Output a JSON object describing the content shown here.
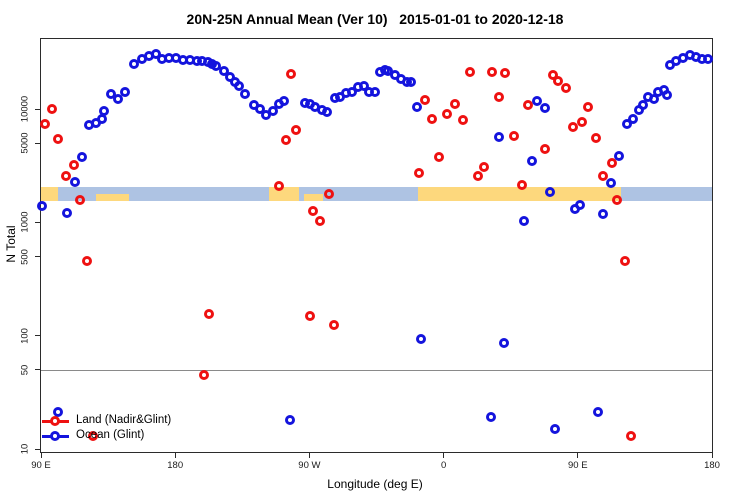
{
  "title": "20N-25N Annual Mean (Ver 10)   2015-01-01 to 2020-12-18",
  "axes": {
    "y_label": "N Total",
    "x_label": "Longitude (deg E)",
    "y_scale": "log10",
    "y_ticks": [
      10,
      50,
      100,
      500,
      1000,
      5000,
      10000
    ],
    "x_ticks": [
      {
        "lon": 90,
        "label": "90 E"
      },
      {
        "lon": 180,
        "label": "180"
      },
      {
        "lon": 270,
        "label": "90 W"
      },
      {
        "lon": 360,
        "label": "0"
      },
      {
        "lon": 450,
        "label": "90 E"
      },
      {
        "lon": 540,
        "label": "180"
      }
    ]
  },
  "legend": {
    "items": [
      {
        "label": "Land (Nadir&Glint)",
        "color": "#ee1111"
      },
      {
        "label": "Ocean (Glint)",
        "color": "#1414dd"
      }
    ]
  },
  "reference_line": {
    "value": 50,
    "color": "#8a8a8a"
  },
  "band": {
    "value_range": [
      1560,
      2060
    ],
    "sand_color": "#fdd87d",
    "blue_color": "#aec3e3",
    "sand_segments_lon": [
      [
        90,
        101.4
      ],
      [
        242.9,
        263.0
      ],
      [
        342.8,
        479.0
      ]
    ],
    "blue_segments_lon": [
      [
        101.4,
        242.9
      ],
      [
        263.0,
        342.8
      ],
      [
        479.0,
        540
      ]
    ],
    "sand_half_segments_lon": [
      [
        126.9,
        149.0
      ],
      [
        266.4,
        279.2
      ]
    ]
  },
  "chart_data": {
    "type": "scatter",
    "title": "20N-25N Annual Mean (Ver 10)   2015-01-01 to 2020-12-18",
    "xlabel": "Longitude (deg E)",
    "ylabel": "N Total",
    "x_note": "extended longitude axis, degrees east from 90E wrapping to 180 (90..540)",
    "xlim": [
      90,
      540
    ],
    "ylim_log": [
      10,
      41000
    ],
    "grid": false,
    "legend_position": "bottom-left",
    "series": [
      {
        "name": "Land (Nadir&Glint)",
        "color": "#ee1111",
        "points": [
          [
            92.9,
            7400
          ],
          [
            97.6,
            10000
          ],
          [
            101.6,
            5500
          ],
          [
            107,
            2560
          ],
          [
            112.4,
            3200
          ],
          [
            116.4,
            1570
          ],
          [
            121.1,
            460
          ],
          [
            125.1,
            13
          ],
          [
            199,
            45
          ],
          [
            203,
            156
          ],
          [
            249.4,
            2090
          ],
          [
            254,
            5330
          ],
          [
            257.4,
            20400
          ],
          [
            260.8,
            6540
          ],
          [
            270.2,
            150
          ],
          [
            272.2,
            1260
          ],
          [
            276.9,
            1030
          ],
          [
            283,
            1780
          ],
          [
            286.3,
            124
          ],
          [
            343.4,
            2720
          ],
          [
            347.4,
            12100
          ],
          [
            352.1,
            8250
          ],
          [
            356.8,
            3780
          ],
          [
            362.2,
            9120
          ],
          [
            367.5,
            11200
          ],
          [
            372.9,
            8070
          ],
          [
            377.6,
            21100
          ],
          [
            383,
            2560
          ],
          [
            387,
            3080
          ],
          [
            392.4,
            21100
          ],
          [
            397.1,
            12900
          ],
          [
            401.1,
            20700
          ],
          [
            407.2,
            5790
          ],
          [
            412.6,
            2130
          ],
          [
            416.6,
            10800
          ],
          [
            428,
            4450
          ],
          [
            433.4,
            19800
          ],
          [
            436.7,
            17600
          ],
          [
            442.1,
            15200
          ],
          [
            446.8,
            6930
          ],
          [
            452.8,
            7700
          ],
          [
            456.9,
            10400
          ],
          [
            462.3,
            5550
          ],
          [
            467,
            2560
          ],
          [
            473,
            3330
          ],
          [
            476.4,
            1570
          ],
          [
            481.7,
            460
          ],
          [
            485.7,
            13
          ]
        ]
      },
      {
        "name": "Ocean (Glint)",
        "color": "#1414dd",
        "points": [
          [
            90.9,
            1400
          ],
          [
            101.6,
            21
          ],
          [
            107.7,
            1210
          ],
          [
            113,
            2280
          ],
          [
            117.7,
            3780
          ],
          [
            122.4,
            7240
          ],
          [
            127.1,
            7530
          ],
          [
            131.2,
            8140
          ],
          [
            132.5,
            9550
          ],
          [
            137.2,
            13600
          ],
          [
            141.9,
            12300
          ],
          [
            146.6,
            14100
          ],
          [
            152.7,
            24900
          ],
          [
            158,
            27700
          ],
          [
            162.7,
            29400
          ],
          [
            167.4,
            30600
          ],
          [
            171.4,
            27700
          ],
          [
            176.1,
            28300
          ],
          [
            180.8,
            28300
          ],
          [
            184.9,
            27200
          ],
          [
            189.6,
            27200
          ],
          [
            194.3,
            26600
          ],
          [
            198.3,
            26600
          ],
          [
            201.7,
            26100
          ],
          [
            204.4,
            24900
          ],
          [
            207.1,
            23900
          ],
          [
            212.4,
            21500
          ],
          [
            216.5,
            19100
          ],
          [
            219.8,
            17300
          ],
          [
            222.5,
            15900
          ],
          [
            226.5,
            13600
          ],
          [
            232.6,
            10800
          ],
          [
            236.6,
            10000
          ],
          [
            240.6,
            8880
          ],
          [
            245.3,
            9550
          ],
          [
            249.4,
            11200
          ],
          [
            252.7,
            11900
          ],
          [
            256.7,
            18
          ],
          [
            266.8,
            11400
          ],
          [
            270.2,
            11000
          ],
          [
            273.5,
            10400
          ],
          [
            278.2,
            9770
          ],
          [
            281.6,
            9380
          ],
          [
            287,
            12600
          ],
          [
            290.3,
            12900
          ],
          [
            294.4,
            13800
          ],
          [
            298.4,
            14100
          ],
          [
            302.4,
            15600
          ],
          [
            306.4,
            15900
          ],
          [
            309.8,
            14100
          ],
          [
            313.8,
            14100
          ],
          [
            317.2,
            21100
          ],
          [
            320.5,
            22000
          ],
          [
            322.5,
            21500
          ],
          [
            327.3,
            20100
          ],
          [
            331.3,
            18400
          ],
          [
            335.3,
            17200
          ],
          [
            338,
            17200
          ],
          [
            342,
            10400
          ],
          [
            344.7,
            94
          ],
          [
            391.7,
            19
          ],
          [
            397.1,
            5680
          ],
          [
            400.4,
            86
          ],
          [
            413.9,
            1030
          ],
          [
            419.3,
            3480
          ],
          [
            422.6,
            11900
          ],
          [
            428,
            10200
          ],
          [
            431.4,
            1850
          ],
          [
            434.7,
            15
          ],
          [
            448.2,
            1310
          ],
          [
            451.5,
            1420
          ],
          [
            463.6,
            21
          ],
          [
            467,
            1180
          ],
          [
            472.3,
            2220
          ],
          [
            477.7,
            3850
          ],
          [
            483,
            7380
          ],
          [
            487.1,
            8140
          ],
          [
            491.1,
            9770
          ],
          [
            493.8,
            10800
          ],
          [
            497.2,
            12900
          ],
          [
            501.2,
            12300
          ],
          [
            503.9,
            14100
          ],
          [
            507.9,
            14700
          ],
          [
            509.9,
            13300
          ],
          [
            512,
            24400
          ],
          [
            516,
            26600
          ],
          [
            520.7,
            28300
          ],
          [
            525.4,
            30000
          ],
          [
            529.4,
            28900
          ],
          [
            533.4,
            27700
          ],
          [
            537.4,
            27700
          ]
        ]
      }
    ]
  }
}
